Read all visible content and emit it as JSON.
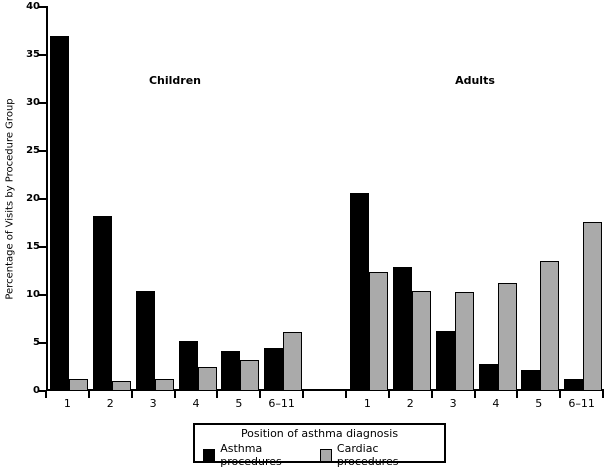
{
  "chart_data": {
    "type": "bar",
    "title": "",
    "ylabel": "Percentage of Visits by Procedure Group",
    "xlabel": "",
    "ylim": [
      0,
      40
    ],
    "yticks": [
      0,
      5,
      10,
      15,
      20,
      25,
      30,
      35,
      40
    ],
    "grid": false,
    "categories": [
      "1",
      "2",
      "3",
      "4",
      "5",
      "6–11"
    ],
    "groups": [
      {
        "label": "Children",
        "series": [
          {
            "name": "Asthma procedures",
            "color": "#000000",
            "values": [
              37.0,
              18.2,
              10.4,
              5.2,
              4.2,
              4.5
            ]
          },
          {
            "name": "Cardiac procedures",
            "color": "#aaaaaa",
            "values": [
              1.3,
              1.0,
              1.3,
              2.5,
              3.2,
              6.1
            ]
          }
        ]
      },
      {
        "label": "Adults",
        "series": [
          {
            "name": "Asthma procedures",
            "color": "#000000",
            "values": [
              20.6,
              12.9,
              6.2,
              2.8,
              2.2,
              1.2
            ]
          },
          {
            "name": "Cardiac procedures",
            "color": "#aaaaaa",
            "values": [
              12.4,
              10.4,
              10.3,
              11.2,
              13.5,
              17.6
            ]
          }
        ]
      }
    ],
    "legend": {
      "title": "Position of asthma diagnosis",
      "position": "bottom",
      "entries": [
        {
          "label": "Asthma procedures",
          "color": "#000000"
        },
        {
          "label": "Cardiac procedures",
          "color": "#aaaaaa"
        }
      ]
    }
  }
}
